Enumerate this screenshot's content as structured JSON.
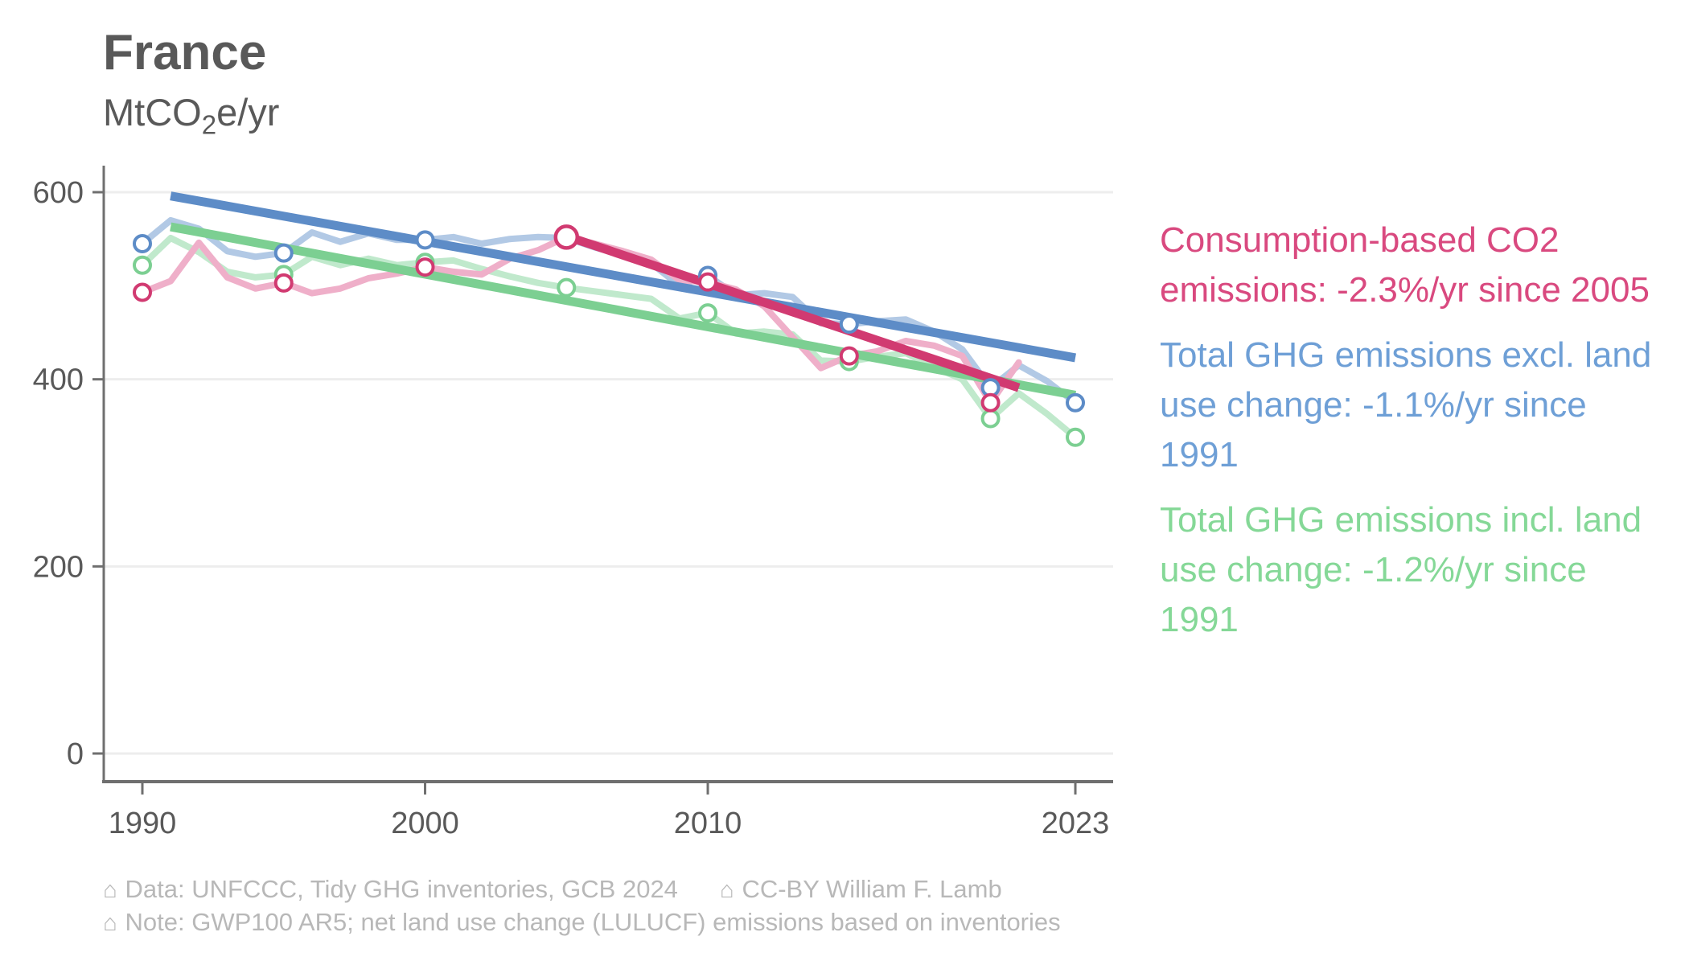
{
  "title": "France",
  "subtitle": {
    "pre": "MtCO",
    "sub": "2",
    "post": "e/yr"
  },
  "legend": [
    {
      "text": "Consumption-based CO2 emissions: -2.3%/yr since 2005",
      "lines": [
        "Consumption-based CO2",
        "emissions: -2.3%/yr since 2005"
      ],
      "color": "#d9497f"
    },
    {
      "text": "Total GHG emissions excl. land use change: -1.1%/yr since 1991",
      "lines": [
        "Total GHG emissions excl. land",
        "use change: -1.1%/yr since",
        "1991"
      ],
      "color": "#6e9fd6"
    },
    {
      "text": "Total GHG emissions incl. land use change: -1.2%/yr since 1991",
      "lines": [
        "Total GHG emissions incl. land",
        "use change: -1.2%/yr since",
        "1991"
      ],
      "color": "#85d897"
    }
  ],
  "footer": {
    "icon_glyph": "⌂",
    "line1": [
      {
        "text": "Data: UNFCCC, Tidy GHG inventories, GCB 2024"
      },
      {
        "text": "CC-BY William F. Lamb"
      }
    ],
    "line2": [
      {
        "text": "Note: GWP100 AR5; net land use change (LULUCF) emissions based on inventories"
      }
    ]
  },
  "colors": {
    "background": "#ffffff",
    "title": "#595959",
    "axis": "#6f6f6f",
    "tick_label": "#595959",
    "grid": "#ededed",
    "footer": "#b8b8b8"
  },
  "chart_data": {
    "type": "line",
    "title": "France",
    "ylabel": "MtCO2e/yr",
    "xlabel": "",
    "x_ticks": [
      1990,
      2000,
      2010,
      2023
    ],
    "y_ticks": [
      0,
      200,
      400,
      600
    ],
    "xlim": [
      1988.6,
      2024.3
    ],
    "ylim": [
      0,
      628
    ],
    "grid": "horizontal",
    "legend_position": "right",
    "x": [
      1990,
      1991,
      1992,
      1993,
      1994,
      1995,
      1996,
      1997,
      1998,
      1999,
      2000,
      2001,
      2002,
      2003,
      2004,
      2005,
      2006,
      2007,
      2008,
      2009,
      2010,
      2011,
      2012,
      2013,
      2014,
      2015,
      2016,
      2017,
      2018,
      2019,
      2020,
      2021,
      2022,
      2023
    ],
    "series": [
      {
        "name": "Consumption-based CO2 emissions",
        "trend_label": "-2.3%/yr since 2005",
        "start_year": 1990,
        "end_year": 2021,
        "values": [
          493,
          505,
          546,
          509,
          497,
          503,
          492,
          497,
          508,
          513,
          520,
          515,
          512,
          529,
          538,
          552,
          545,
          537,
          528,
          506,
          504,
          496,
          478,
          445,
          412,
          425,
          430,
          441,
          436,
          425,
          375,
          418
        ],
        "line_color": "#efafc9",
        "trend_color": "#d13a71",
        "trend": {
          "from_year": 2005,
          "from_value": 553,
          "to_year": 2021,
          "to_value": 391
        },
        "marker_years": [
          1990,
          1995,
          2000,
          2005,
          2010,
          2015,
          2020
        ],
        "big_marker_year": 2005,
        "draw_order": 2
      },
      {
        "name": "Total GHG emissions excl. land use change",
        "trend_label": "-1.1%/yr since 1991",
        "start_year": 1990,
        "end_year": 2023,
        "values": [
          545,
          570,
          561,
          537,
          531,
          535,
          557,
          547,
          556,
          549,
          549,
          552,
          545,
          550,
          552,
          551,
          541,
          533,
          524,
          500,
          511,
          490,
          492,
          488,
          460,
          459,
          462,
          464,
          451,
          432,
          391,
          415,
          398,
          375
        ],
        "line_color": "#b2c9e5",
        "trend_color": "#5d8cc7",
        "trend": {
          "from_year": 1991,
          "from_value": 596,
          "to_year": 2023,
          "to_value": 423
        },
        "marker_years": [
          1990,
          1995,
          2000,
          2005,
          2010,
          2015,
          2020,
          2023
        ],
        "draw_order": 0
      },
      {
        "name": "Total GHG emissions incl. land use change",
        "trend_label": "-1.2%/yr since 1991",
        "start_year": 1990,
        "end_year": 2023,
        "values": [
          522,
          551,
          536,
          515,
          509,
          512,
          531,
          522,
          529,
          522,
          525,
          527,
          518,
          510,
          503,
          498,
          494,
          490,
          486,
          465,
          471,
          449,
          451,
          448,
          420,
          419,
          424,
          428,
          413,
          400,
          358,
          385,
          363,
          338
        ],
        "line_color": "#c0e9cc",
        "trend_color": "#7ccf92",
        "trend": {
          "from_year": 1991,
          "from_value": 563,
          "to_year": 2023,
          "to_value": 383
        },
        "marker_years": [
          1990,
          1995,
          2000,
          2005,
          2010,
          2015,
          2020,
          2023
        ],
        "draw_order": 1
      }
    ]
  }
}
